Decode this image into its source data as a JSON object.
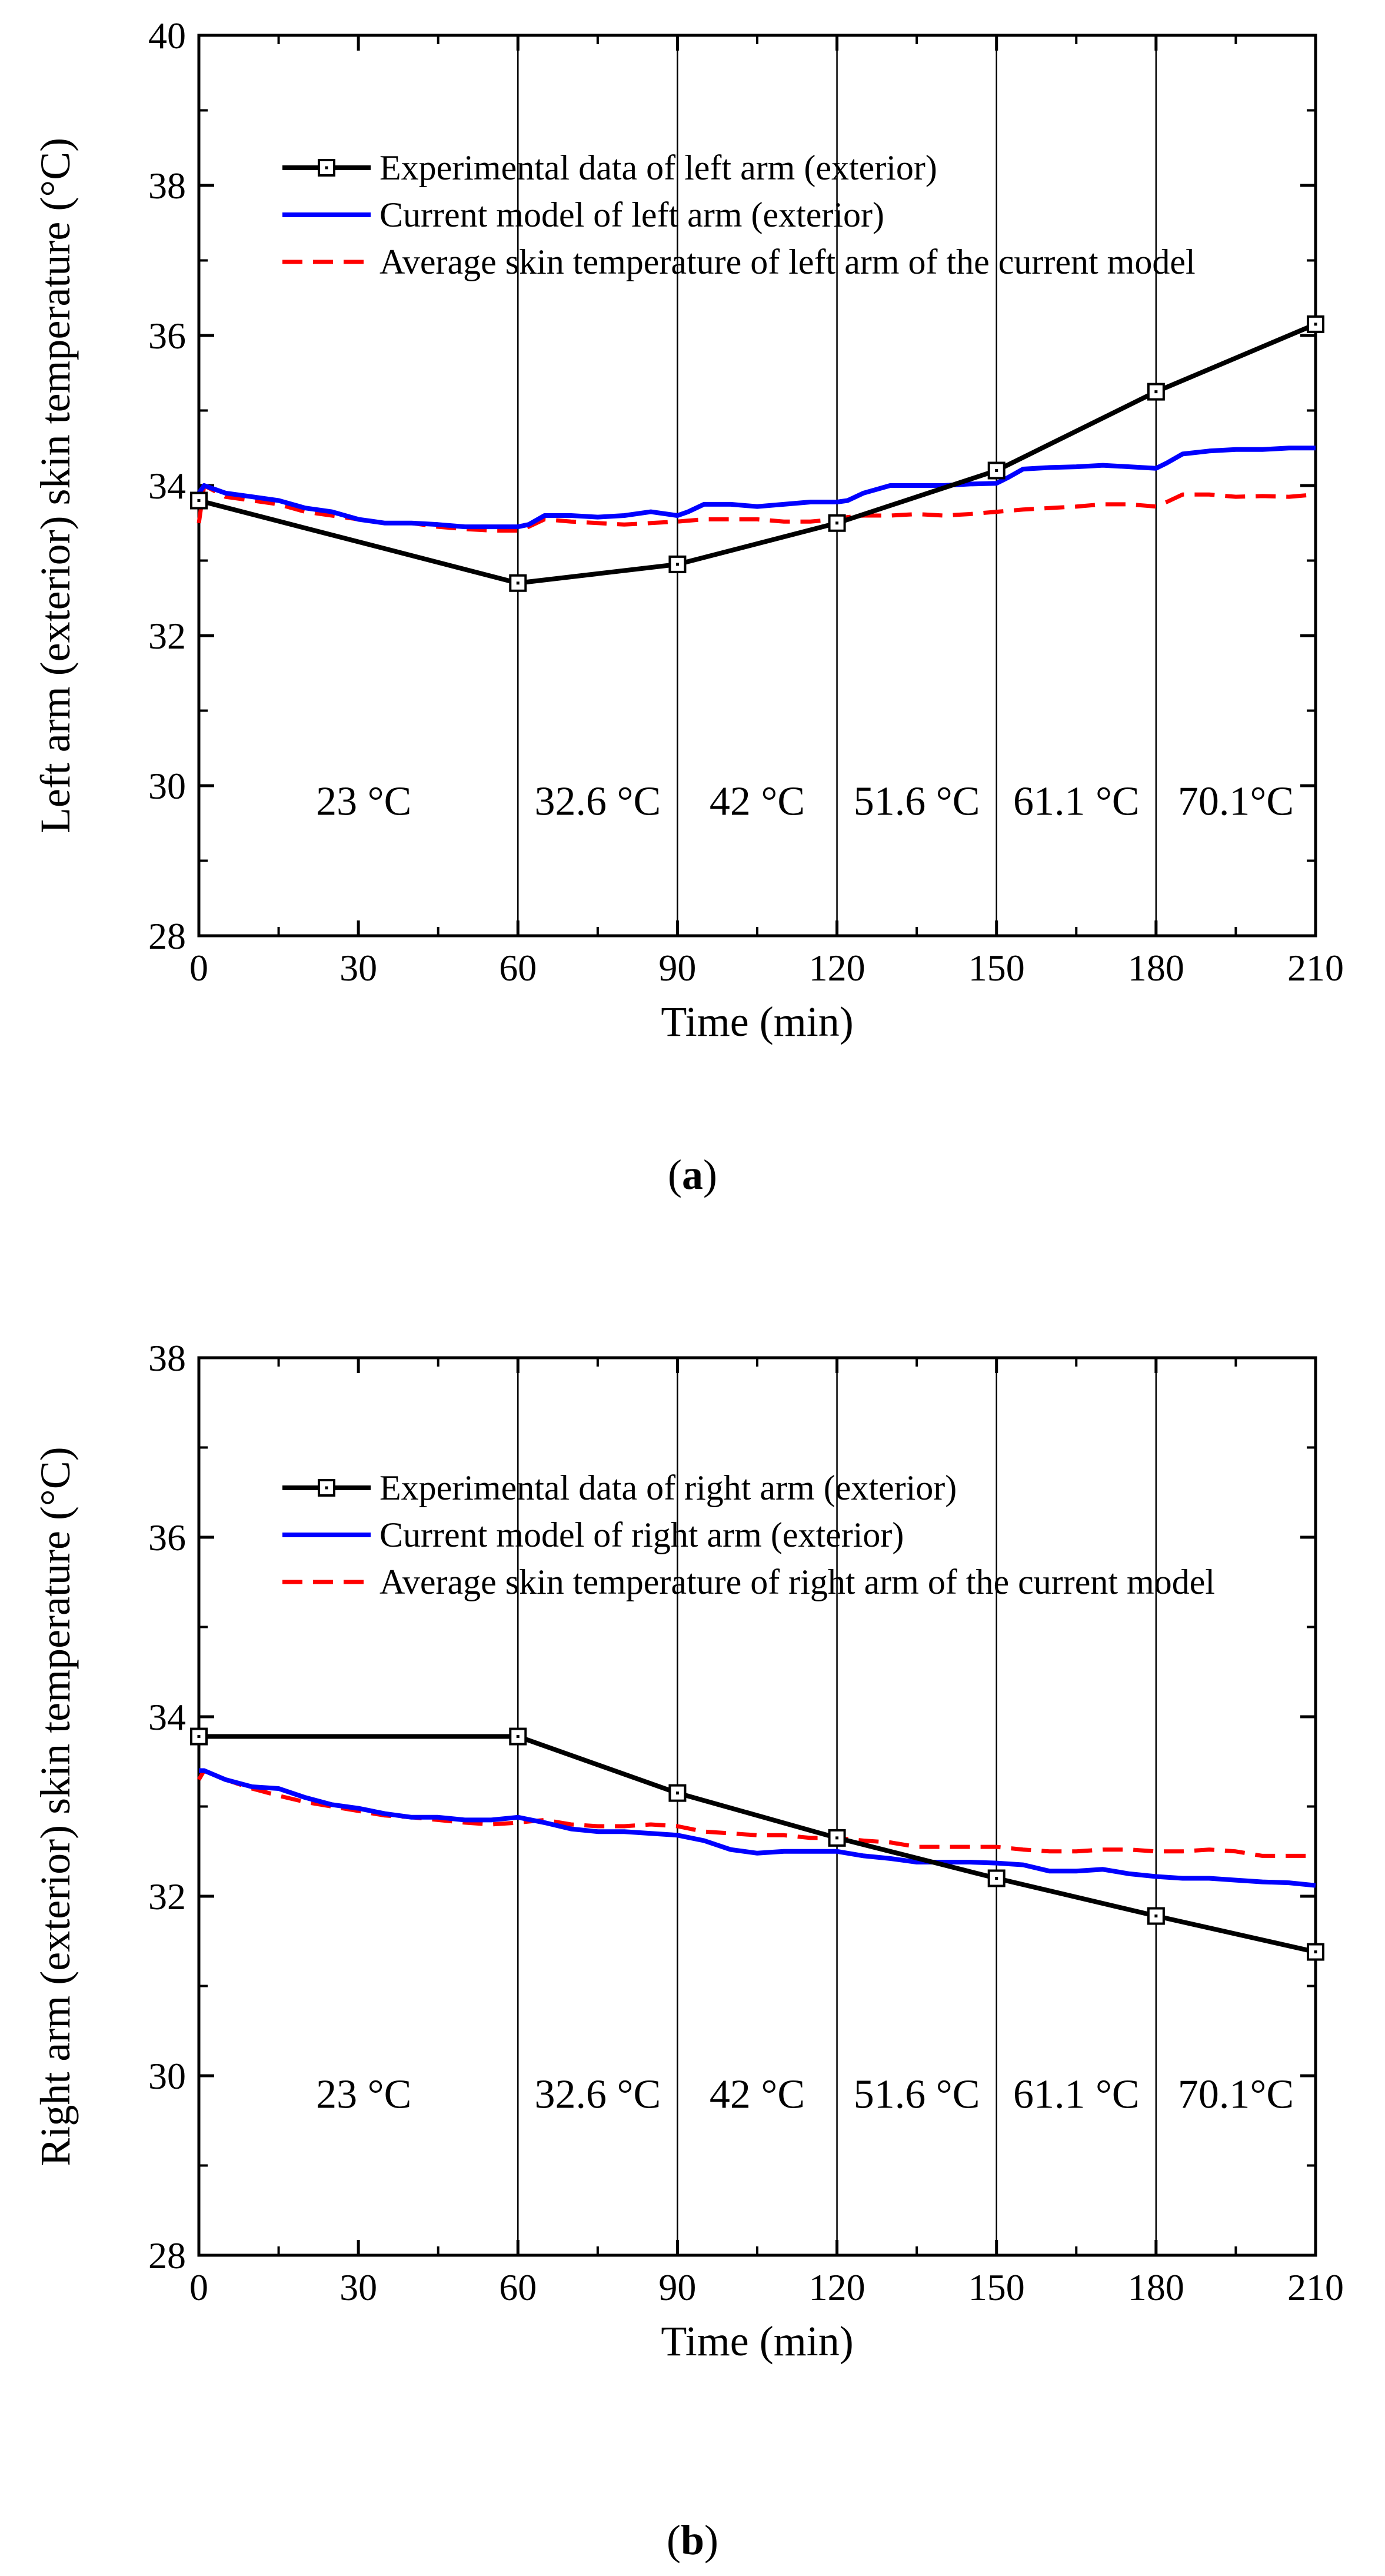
{
  "chart_data": [
    {
      "type": "line",
      "panel_label": "a",
      "xlabel": "Time (min)",
      "ylabel": "Left arm (exterior) skin temperature (°C)",
      "xlim": [
        0,
        210
      ],
      "ylim": [
        28,
        40
      ],
      "xticks": [
        0,
        30,
        60,
        90,
        120,
        150,
        180,
        210
      ],
      "yticks": [
        28,
        30,
        32,
        34,
        36,
        38,
        40
      ],
      "phase_boundaries": [
        60,
        90,
        120,
        150,
        180
      ],
      "phase_labels": [
        {
          "x": 31,
          "y": 29.8,
          "text": "23 °C"
        },
        {
          "x": 75,
          "y": 29.8,
          "text": "32.6 °C"
        },
        {
          "x": 105,
          "y": 29.8,
          "text": "42 °C"
        },
        {
          "x": 135,
          "y": 29.8,
          "text": "51.6 °C"
        },
        {
          "x": 165,
          "y": 29.8,
          "text": "61.1 °C"
        },
        {
          "x": 195,
          "y": 29.8,
          "text": "70.1°C"
        }
      ],
      "legend_position": "top-center",
      "series": [
        {
          "name": "Experimental data of left arm (exterior)",
          "style": "solid-square-marker",
          "color": "#000000",
          "x": [
            0,
            60,
            90,
            120,
            150,
            180,
            210
          ],
          "y": [
            33.8,
            32.7,
            32.95,
            33.5,
            34.2,
            35.25,
            36.15
          ]
        },
        {
          "name": "Current model of left arm (exterior)",
          "style": "solid",
          "color": "#0000ff",
          "x": [
            0,
            1,
            5,
            10,
            15,
            20,
            25,
            30,
            35,
            40,
            45,
            50,
            55,
            60,
            62,
            65,
            70,
            75,
            80,
            85,
            90,
            92,
            95,
            100,
            105,
            110,
            115,
            120,
            122,
            125,
            130,
            135,
            140,
            145,
            150,
            152,
            155,
            160,
            165,
            170,
            175,
            180,
            182,
            185,
            190,
            195,
            200,
            205,
            210
          ],
          "y": [
            33.9,
            34.0,
            33.9,
            33.85,
            33.8,
            33.7,
            33.65,
            33.55,
            33.5,
            33.5,
            33.48,
            33.45,
            33.45,
            33.45,
            33.48,
            33.6,
            33.6,
            33.58,
            33.6,
            33.65,
            33.6,
            33.65,
            33.75,
            33.75,
            33.72,
            33.75,
            33.78,
            33.78,
            33.8,
            33.9,
            34.0,
            34.0,
            34.0,
            34.02,
            34.03,
            34.1,
            34.22,
            34.24,
            34.25,
            34.27,
            34.25,
            34.23,
            34.3,
            34.42,
            34.46,
            34.48,
            34.48,
            34.5,
            34.5
          ]
        },
        {
          "name": "Average skin temperature of left arm of the current model",
          "style": "dashed",
          "color": "#ff0000",
          "x": [
            0,
            1,
            5,
            10,
            15,
            20,
            25,
            30,
            35,
            40,
            45,
            50,
            55,
            60,
            62,
            65,
            70,
            75,
            80,
            85,
            90,
            95,
            100,
            105,
            110,
            115,
            120,
            122,
            125,
            130,
            135,
            140,
            145,
            150,
            155,
            160,
            165,
            170,
            175,
            180,
            182,
            185,
            190,
            195,
            200,
            205,
            210
          ],
          "y": [
            33.5,
            34.0,
            33.85,
            33.8,
            33.75,
            33.65,
            33.6,
            33.55,
            33.5,
            33.5,
            33.45,
            33.42,
            33.4,
            33.4,
            33.45,
            33.55,
            33.52,
            33.5,
            33.48,
            33.5,
            33.52,
            33.55,
            33.55,
            33.55,
            33.52,
            33.52,
            33.55,
            33.58,
            33.6,
            33.6,
            33.62,
            33.6,
            33.62,
            33.65,
            33.68,
            33.7,
            33.72,
            33.75,
            33.75,
            33.72,
            33.78,
            33.88,
            33.88,
            33.85,
            33.86,
            33.85,
            33.88
          ]
        }
      ]
    },
    {
      "type": "line",
      "panel_label": "b",
      "xlabel": "Time (min)",
      "ylabel": "Right arm (exterior) skin temperature (°C)",
      "xlim": [
        0,
        210
      ],
      "ylim": [
        28,
        38
      ],
      "xticks": [
        0,
        30,
        60,
        90,
        120,
        150,
        180,
        210
      ],
      "yticks": [
        28,
        30,
        32,
        34,
        36,
        38
      ],
      "phase_boundaries": [
        60,
        90,
        120,
        150,
        180
      ],
      "phase_labels": [
        {
          "x": 31,
          "y": 29.8,
          "text": "23 °C"
        },
        {
          "x": 75,
          "y": 29.8,
          "text": "32.6 °C"
        },
        {
          "x": 105,
          "y": 29.8,
          "text": "42 °C"
        },
        {
          "x": 135,
          "y": 29.8,
          "text": "51.6 °C"
        },
        {
          "x": 165,
          "y": 29.8,
          "text": "61.1 °C"
        },
        {
          "x": 195,
          "y": 29.8,
          "text": "70.1°C"
        }
      ],
      "legend_position": "top-center",
      "series": [
        {
          "name": "Experimental data of right arm (exterior)",
          "style": "solid-square-marker",
          "color": "#000000",
          "x": [
            0,
            60,
            90,
            120,
            150,
            180,
            210
          ],
          "y": [
            33.78,
            33.78,
            33.15,
            32.65,
            32.2,
            31.78,
            31.38
          ]
        },
        {
          "name": "Current model of right arm (exterior)",
          "style": "solid",
          "color": "#0000ff",
          "x": [
            0,
            1,
            5,
            10,
            15,
            20,
            25,
            30,
            35,
            40,
            45,
            50,
            55,
            60,
            65,
            70,
            75,
            80,
            85,
            90,
            95,
            100,
            105,
            110,
            115,
            120,
            125,
            130,
            135,
            140,
            145,
            150,
            155,
            160,
            165,
            170,
            175,
            180,
            185,
            190,
            195,
            200,
            205,
            210
          ],
          "y": [
            33.4,
            33.4,
            33.3,
            33.22,
            33.2,
            33.1,
            33.02,
            32.98,
            32.92,
            32.88,
            32.88,
            32.85,
            32.85,
            32.88,
            32.82,
            32.75,
            32.72,
            32.72,
            32.7,
            32.68,
            32.62,
            32.52,
            32.48,
            32.5,
            32.5,
            32.5,
            32.45,
            32.42,
            32.38,
            32.38,
            32.38,
            32.37,
            32.35,
            32.28,
            32.28,
            32.3,
            32.25,
            32.22,
            32.2,
            32.2,
            32.18,
            32.16,
            32.15,
            32.12
          ]
        },
        {
          "name": "Average skin temperature of right arm of the current model",
          "style": "dashed",
          "color": "#ff0000",
          "x": [
            0,
            1,
            5,
            10,
            15,
            20,
            25,
            30,
            35,
            40,
            45,
            50,
            55,
            60,
            65,
            70,
            75,
            80,
            85,
            90,
            95,
            100,
            105,
            110,
            115,
            120,
            125,
            130,
            135,
            140,
            145,
            150,
            155,
            160,
            165,
            170,
            175,
            180,
            185,
            190,
            195,
            200,
            205,
            210
          ],
          "y": [
            33.3,
            33.4,
            33.3,
            33.2,
            33.12,
            33.05,
            33.0,
            32.95,
            32.9,
            32.88,
            32.85,
            32.82,
            32.8,
            32.82,
            32.85,
            32.8,
            32.78,
            32.78,
            32.8,
            32.78,
            32.72,
            32.7,
            32.68,
            32.68,
            32.65,
            32.65,
            32.62,
            32.6,
            32.55,
            32.55,
            32.55,
            32.55,
            32.52,
            32.5,
            32.5,
            32.52,
            32.52,
            32.5,
            32.5,
            32.52,
            32.5,
            32.45,
            32.45,
            32.45
          ]
        }
      ]
    }
  ],
  "captions": {
    "a": {
      "open": "(",
      "letter": "a",
      "close": ")"
    },
    "b": {
      "open": "(",
      "letter": "b",
      "close": ")"
    }
  }
}
